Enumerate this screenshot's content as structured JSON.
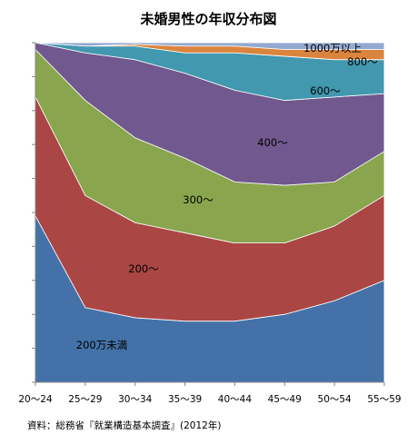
{
  "chart_data": {
    "type": "area",
    "stacked": true,
    "normalized": true,
    "title": "未婚男性の年収分布図",
    "xlabel": "",
    "ylabel": "",
    "categories": [
      "20〜24",
      "25〜29",
      "30〜34",
      "35〜39",
      "40〜44",
      "45〜49",
      "50〜54",
      "55〜59"
    ],
    "ylim": [
      0,
      100
    ],
    "grid": false,
    "legend": "none",
    "series": [
      {
        "name": "200万未満",
        "color": "#4472a8",
        "values": [
          49,
          22,
          19,
          18,
          18,
          20,
          24,
          30
        ]
      },
      {
        "name": "200〜",
        "color": "#aa4644",
        "values": [
          35,
          33,
          28,
          26,
          23,
          21,
          22,
          25
        ]
      },
      {
        "name": "300〜",
        "color": "#89a54e",
        "values": [
          14,
          28,
          25,
          22,
          18,
          17,
          13,
          13
        ]
      },
      {
        "name": "400〜",
        "color": "#71588f",
        "values": [
          2,
          14,
          23,
          25,
          27,
          25,
          25,
          17
        ]
      },
      {
        "name": "600〜",
        "color": "#4198af",
        "values": [
          0,
          2,
          4,
          6,
          11,
          13,
          11,
          10
        ]
      },
      {
        "name": "800〜",
        "color": "#db843d",
        "values": [
          0,
          0,
          0.5,
          2,
          2,
          2,
          3,
          3
        ]
      },
      {
        "name": "1000万以上",
        "color": "#93a9cf",
        "values": [
          0,
          1,
          0.5,
          1,
          1,
          2,
          2,
          2
        ]
      }
    ],
    "source": "資料：総務省『就業構造基本調査』(2012年)"
  }
}
